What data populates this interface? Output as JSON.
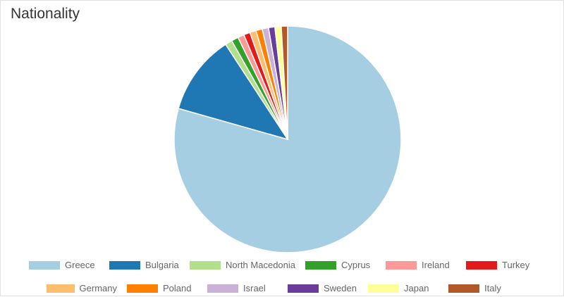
{
  "chart_data": {
    "type": "pie",
    "title": "Nationality",
    "categories": [
      "Greece",
      "Bulgaria",
      "North Macedonia",
      "Cyprus",
      "Ireland",
      "Turkey",
      "Germany",
      "Poland",
      "Israel",
      "Sweden",
      "Japan",
      "Italy"
    ],
    "values": [
      79.4,
      11.4,
      1.0,
      1.0,
      0.9,
      0.9,
      0.9,
      0.9,
      0.9,
      0.9,
      0.9,
      0.9
    ],
    "colors": [
      "#a6cee3",
      "#1f78b4",
      "#b2df8a",
      "#33a02c",
      "#fb9a99",
      "#e31a1c",
      "#fdbf6f",
      "#ff7f00",
      "#cab2d6",
      "#6a3d9a",
      "#ffff99",
      "#b15928"
    ]
  }
}
